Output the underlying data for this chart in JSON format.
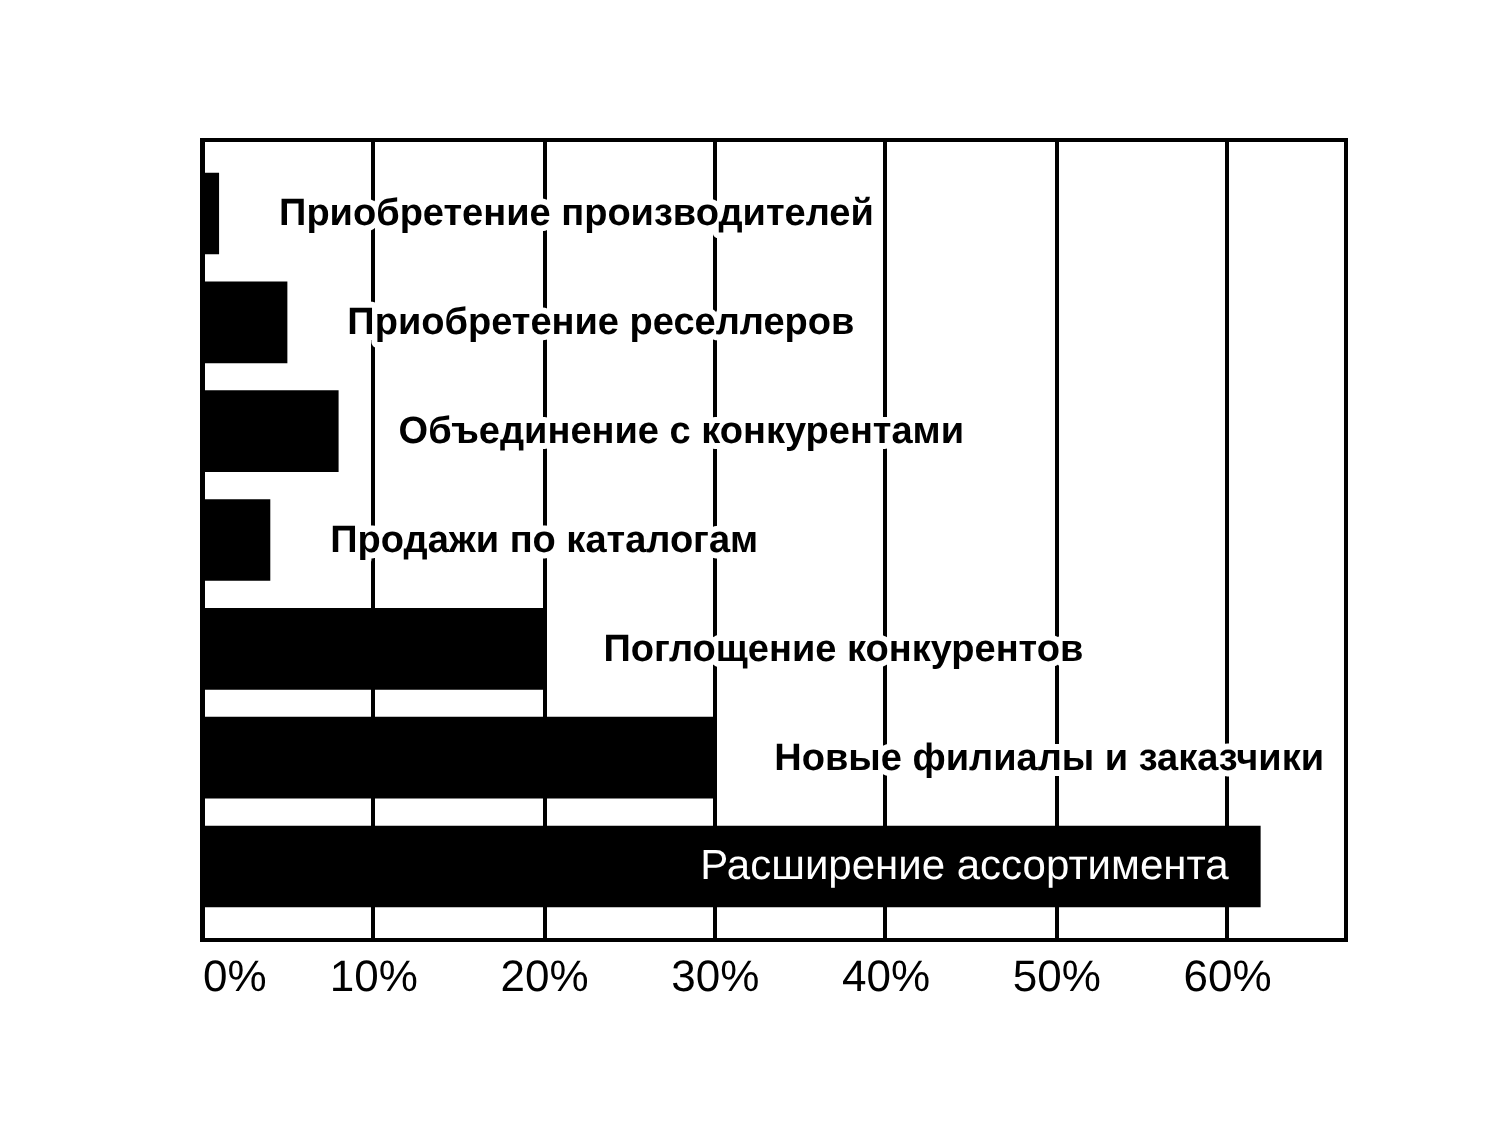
{
  "chart_data": {
    "type": "bar",
    "orientation": "horizontal",
    "categories": [
      "Приобретение производителей",
      "Приобретение реселлеров",
      "Объединение с конкурентами",
      "Продажи по каталогам",
      "Поглощение конкурентов",
      "Новые филиалы и заказчики",
      "Расширение ассортимента"
    ],
    "values": [
      1,
      5,
      8,
      4,
      20,
      30,
      62
    ],
    "color": "#000000",
    "xlim": [
      0,
      67
    ],
    "xticks": [
      {
        "value": 0,
        "label": "0%"
      },
      {
        "value": 10,
        "label": "10%"
      },
      {
        "value": 20,
        "label": "20%"
      },
      {
        "value": 30,
        "label": "30%"
      },
      {
        "value": 40,
        "label": "40%"
      },
      {
        "value": 50,
        "label": "50%"
      },
      {
        "value": 60,
        "label": "60%"
      }
    ],
    "grid": "x"
  }
}
